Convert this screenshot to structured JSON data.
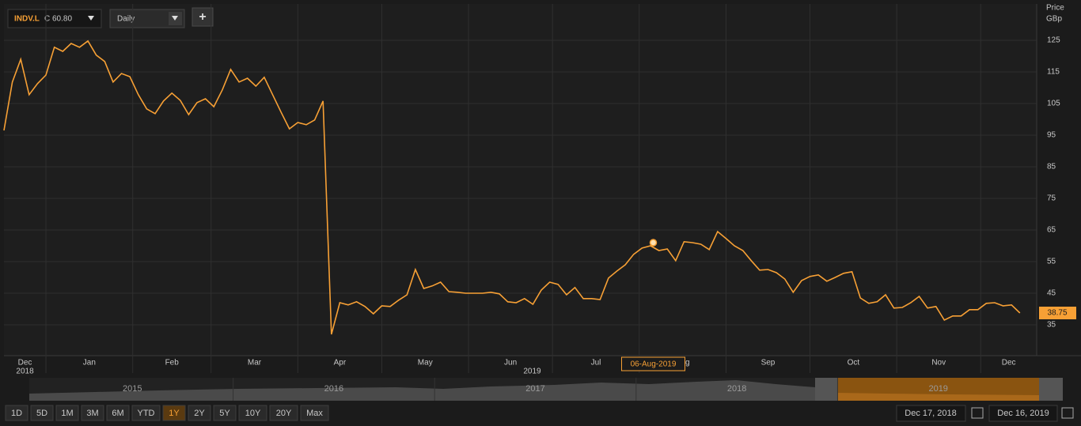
{
  "toolbar": {
    "symbol": "INDV.L",
    "quote": "C 60.80",
    "interval": "Daily",
    "add": "+"
  },
  "chart_data": {
    "type": "line",
    "color": "#f7a035",
    "x": [
      "17-Dec-2018",
      "20-Dec-2018",
      "23-Dec-2018",
      "26-Dec-2018",
      "29-Dec-2018",
      "01-Jan-2019",
      "04-Jan-2019",
      "07-Jan-2019",
      "10-Jan-2019",
      "13-Jan-2019",
      "16-Jan-2019",
      "19-Jan-2019",
      "22-Jan-2019",
      "25-Jan-2019",
      "28-Jan-2019",
      "31-Jan-2019",
      "03-Feb-2019",
      "06-Feb-2019",
      "09-Feb-2019",
      "12-Feb-2019",
      "15-Feb-2019",
      "18-Feb-2019",
      "21-Feb-2019",
      "24-Feb-2019",
      "27-Feb-2019",
      "02-Mar-2019",
      "05-Mar-2019",
      "08-Mar-2019",
      "11-Mar-2019",
      "14-Mar-2019",
      "17-Mar-2019",
      "20-Mar-2019",
      "23-Mar-2019",
      "26-Mar-2019",
      "29-Mar-2019",
      "01-Apr-2019",
      "04-Apr-2019",
      "07-Apr-2019",
      "10-Apr-2019",
      "13-Apr-2019",
      "16-Apr-2019",
      "19-Apr-2019",
      "22-Apr-2019",
      "25-Apr-2019",
      "28-Apr-2019",
      "01-May-2019",
      "04-May-2019",
      "07-May-2019",
      "10-May-2019",
      "13-May-2019",
      "16-May-2019",
      "19-May-2019",
      "22-May-2019",
      "25-May-2019",
      "28-May-2019",
      "31-May-2019",
      "03-Jun-2019",
      "06-Jun-2019",
      "09-Jun-2019",
      "12-Jun-2019",
      "15-Jun-2019",
      "18-Jun-2019",
      "21-Jun-2019",
      "24-Jun-2019",
      "27-Jun-2019",
      "30-Jun-2019",
      "03-Jul-2019",
      "06-Jul-2019",
      "09-Jul-2019",
      "12-Jul-2019",
      "15-Jul-2019",
      "18-Jul-2019",
      "21-Jul-2019",
      "24-Jul-2019",
      "27-Jul-2019",
      "30-Jul-2019",
      "02-Aug-2019",
      "05-Aug-2019",
      "08-Aug-2019",
      "11-Aug-2019",
      "14-Aug-2019",
      "17-Aug-2019",
      "20-Aug-2019",
      "23-Aug-2019",
      "26-Aug-2019",
      "29-Aug-2019",
      "01-Sep-2019",
      "04-Sep-2019",
      "07-Sep-2019",
      "10-Sep-2019",
      "13-Sep-2019",
      "16-Sep-2019",
      "19-Sep-2019",
      "22-Sep-2019",
      "25-Sep-2019",
      "28-Sep-2019",
      "01-Oct-2019",
      "04-Oct-2019",
      "07-Oct-2019",
      "10-Oct-2019",
      "13-Oct-2019",
      "16-Oct-2019",
      "19-Oct-2019",
      "22-Oct-2019",
      "25-Oct-2019",
      "28-Oct-2019",
      "31-Oct-2019",
      "03-Nov-2019",
      "06-Nov-2019",
      "09-Nov-2019",
      "12-Nov-2019",
      "15-Nov-2019",
      "18-Nov-2019",
      "21-Nov-2019",
      "24-Nov-2019",
      "27-Nov-2019",
      "30-Nov-2019",
      "03-Dec-2019",
      "06-Dec-2019",
      "09-Dec-2019",
      "12-Dec-2019",
      "15-Dec-2019"
    ],
    "values": [
      96.5,
      111.8,
      119,
      107.8,
      111.3,
      114,
      122.8,
      121.5,
      124,
      122.8,
      124.8,
      120.3,
      118.3,
      111.8,
      114.5,
      113.5,
      107.8,
      103.3,
      101.8,
      105.8,
      108.3,
      106,
      101.5,
      105.3,
      106.5,
      104,
      109.3,
      115.8,
      111.8,
      113,
      110.5,
      113.3,
      107.8,
      102.3,
      97,
      99,
      98.3,
      99.8,
      105.8,
      32,
      42,
      41.3,
      42.3,
      40.8,
      38.5,
      41,
      40.8,
      42.8,
      44.5,
      52.5,
      46.5,
      47.3,
      48.5,
      45.5,
      45.3,
      45,
      45,
      45,
      45.3,
      44.8,
      42.3,
      42,
      43.3,
      41.5,
      46,
      48.5,
      47.8,
      44.5,
      46.8,
      43.3,
      43.3,
      43,
      49.8,
      52,
      54,
      57.3,
      59.3,
      60,
      58.5,
      59,
      55.3,
      61.3,
      61,
      60.5,
      58.8,
      64.5,
      62.3,
      60,
      58.5,
      55.3,
      52.3,
      52.5,
      51.5,
      49.5,
      45.3,
      49,
      50.3,
      50.8,
      48.8,
      50,
      51.3,
      51.8,
      43.5,
      41.8,
      42.3,
      44.5,
      40.3,
      40.5,
      42,
      44,
      40.3,
      40.8,
      36.5,
      37.8,
      37.8,
      39.8,
      39.8,
      41.8,
      42,
      41,
      41.3,
      38.75
    ],
    "xlim": [
      "17-Dec-2018",
      "21-Dec-2019"
    ],
    "ylim": [
      25.25,
      136.5
    ],
    "yticks": [
      35,
      45,
      55,
      65,
      75,
      85,
      95,
      105,
      115,
      125
    ],
    "y_label": "Price",
    "y_unit": "GBp",
    "x_labels": [
      "Dec",
      "Jan",
      "Feb",
      "Mar",
      "Apr",
      "May",
      "Jun",
      "Jul",
      "Aug",
      "Sep",
      "Oct",
      "Nov",
      "Dec"
    ],
    "x_years": [
      "2018",
      "2019"
    ],
    "crosshair": {
      "x": "06-Aug-2019",
      "value": 61
    },
    "grid": true
  },
  "navigator": {
    "years": [
      "2015",
      "2016",
      "2017",
      "2018",
      "2019"
    ]
  },
  "ranges": {
    "buttons": [
      "1D",
      "5D",
      "1M",
      "3M",
      "6M",
      "YTD",
      "1Y",
      "2Y",
      "5Y",
      "10Y",
      "20Y",
      "Max"
    ],
    "active": 6
  },
  "date_range": {
    "from": "Dec 17, 2018",
    "to": "Dec 16, 2019"
  }
}
